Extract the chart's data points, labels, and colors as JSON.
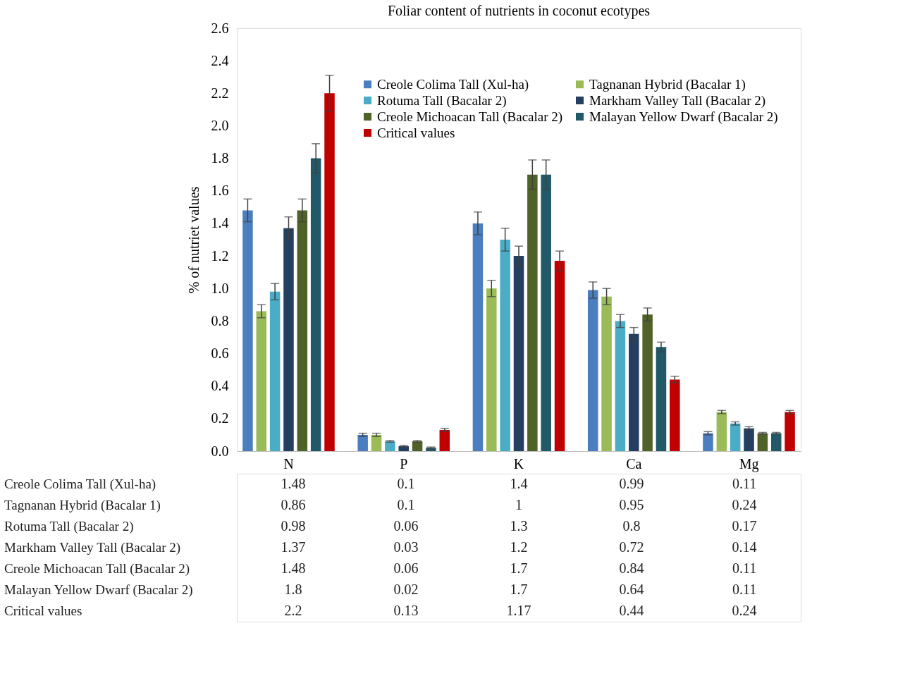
{
  "chart_data": {
    "type": "bar",
    "title": "Foliar content of nutrients in coconut ecotypes",
    "ylabel": "% of nutriet values",
    "categories": [
      "N",
      "P",
      "K",
      "Ca",
      "Mg"
    ],
    "series": [
      {
        "name": "Creole Colima Tall (Xul-ha)",
        "color": "#4a7ebf",
        "values": [
          1.48,
          0.1,
          1.4,
          0.99,
          0.11
        ],
        "errors": [
          0.07,
          0.01,
          0.07,
          0.05,
          0.01
        ]
      },
      {
        "name": "Tagnanan Hybrid (Bacalar 1)",
        "color": "#9bbb59",
        "values": [
          0.86,
          0.1,
          1,
          0.95,
          0.24
        ],
        "errors": [
          0.04,
          0.01,
          0.05,
          0.05,
          0.01
        ]
      },
      {
        "name": "Rotuma Tall (Bacalar 2)",
        "color": "#4bacc6",
        "values": [
          0.98,
          0.06,
          1.3,
          0.8,
          0.17
        ],
        "errors": [
          0.05,
          0.005,
          0.07,
          0.04,
          0.01
        ]
      },
      {
        "name": "Markham Valley Tall (Bacalar 2)",
        "color": "#243f60",
        "values": [
          1.37,
          0.03,
          1.2,
          0.72,
          0.14
        ],
        "errors": [
          0.07,
          0.005,
          0.06,
          0.04,
          0.01
        ]
      },
      {
        "name": "Creole Michoacan Tall (Bacalar 2)",
        "color": "#4f6228",
        "values": [
          1.48,
          0.06,
          1.7,
          0.84,
          0.11
        ],
        "errors": [
          0.07,
          0.005,
          0.09,
          0.04,
          0.005
        ]
      },
      {
        "name": "Malayan Yellow Dwarf (Bacalar 2)",
        "color": "#215968",
        "values": [
          1.8,
          0.02,
          1.7,
          0.64,
          0.11
        ],
        "errors": [
          0.09,
          0.005,
          0.09,
          0.03,
          0.005
        ]
      },
      {
        "name": "Critical values",
        "color": "#c00000",
        "values": [
          2.2,
          0.13,
          1.17,
          0.44,
          0.24
        ],
        "errors": [
          0.11,
          0.01,
          0.06,
          0.02,
          0.01
        ]
      }
    ],
    "ylim": [
      0,
      2.6
    ],
    "yticks": [
      {
        "value": 0,
        "label": "0.0"
      },
      0.2,
      0.4,
      0.6,
      0.8,
      {
        "value": 1,
        "label": "1.0"
      },
      1.2,
      1.4,
      1.6,
      1.8,
      {
        "value": 2,
        "label": "2.0"
      },
      2.2,
      2.4,
      2.6
    ],
    "legend": "top right",
    "grid": false,
    "data_labels": true
  }
}
